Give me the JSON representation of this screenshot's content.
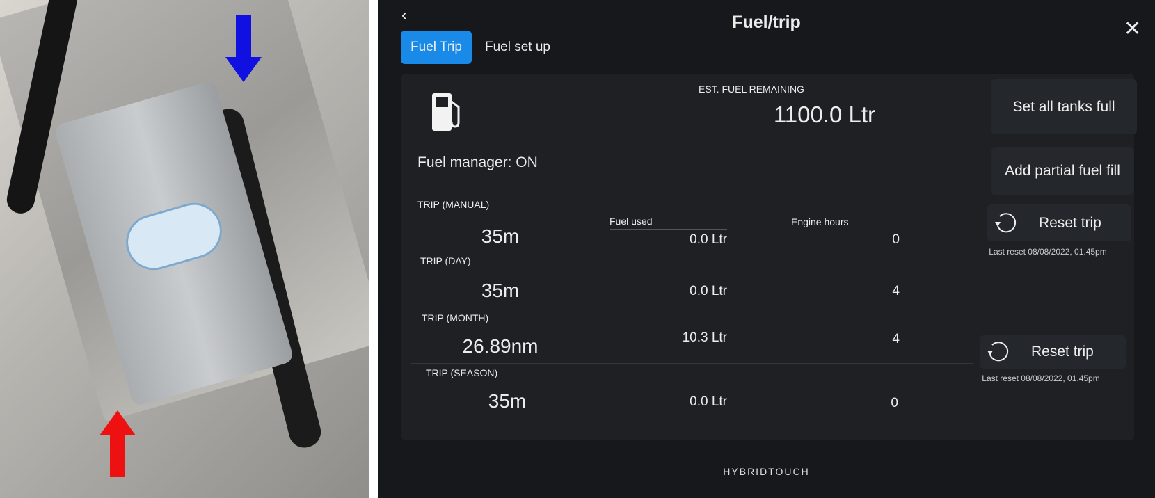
{
  "header": {
    "title": "Fuel/trip",
    "back_icon": "chevron-left-icon",
    "close_icon": "close-icon"
  },
  "tabs": [
    {
      "label": "Fuel Trip",
      "active": true
    },
    {
      "label": "Fuel set up",
      "active": false
    }
  ],
  "accent": "#1a8ae8",
  "summary": {
    "icon": "fuel-pump-icon",
    "est_label": "EST. FUEL REMAINING",
    "est_value": "1100.0 Ltr",
    "manager": "Fuel manager: ON"
  },
  "buttons": {
    "set_full": "Set all tanks full",
    "partial": "Add partial fuel fill",
    "reset1": "Reset trip",
    "reset2": "Reset trip",
    "reset_icon": "reset-icon"
  },
  "last_reset": [
    "Last reset 08/08/2022, 01.45pm",
    "Last reset 08/08/2022, 01.45pm"
  ],
  "columns": {
    "fuel_used": "Fuel used",
    "engine_hours": "Engine hours"
  },
  "trips": [
    {
      "label": "TRIP (MANUAL)",
      "distance": "35m",
      "fuel": "0.0 Ltr",
      "hours": "0"
    },
    {
      "label": "TRIP (DAY)",
      "distance": "35m",
      "fuel": "0.0 Ltr",
      "hours": "4"
    },
    {
      "label": "TRIP (MONTH)",
      "distance": "26.89nm",
      "fuel": "10.3 Ltr",
      "hours": "4"
    },
    {
      "label": "TRIP (SEASON)",
      "distance": "35m",
      "fuel": "0.0 Ltr",
      "hours": "0"
    }
  ],
  "footer": {
    "brand": "HYBRIDTOUCH"
  },
  "photo": {
    "arrows": {
      "outlet": "#1010e0",
      "inlet": "#ee1111"
    }
  }
}
